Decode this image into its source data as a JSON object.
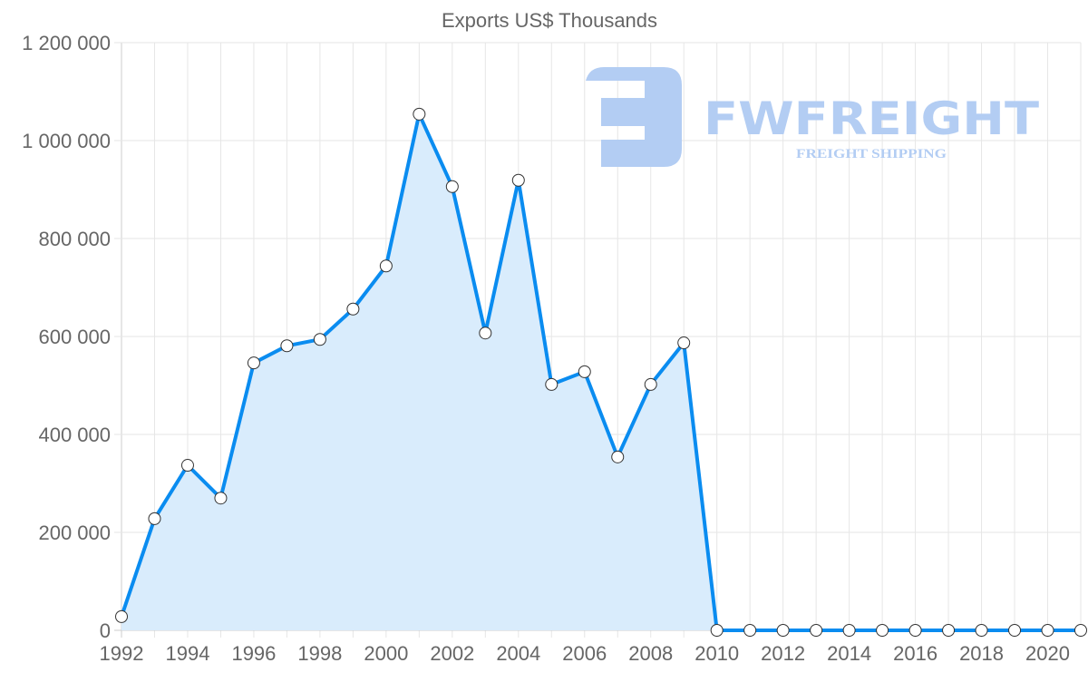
{
  "chart_data": {
    "type": "line",
    "title": "Exports US$ Thousands",
    "xlabel": "",
    "ylabel": "",
    "x": [
      1992,
      1993,
      1994,
      1995,
      1996,
      1997,
      1998,
      1999,
      2000,
      2001,
      2002,
      2003,
      2004,
      2005,
      2006,
      2007,
      2008,
      2009,
      2010,
      2011,
      2012,
      2013,
      2014,
      2015,
      2016,
      2017,
      2018,
      2019,
      2020,
      2021
    ],
    "series": [
      {
        "name": "Exports US$ Thousands",
        "values": [
          28000,
          228000,
          337000,
          270000,
          546000,
          581000,
          594000,
          656000,
          744000,
          1054000,
          906000,
          607000,
          919000,
          502000,
          528000,
          354000,
          502000,
          587000,
          0,
          0,
          0,
          0,
          0,
          0,
          0,
          0,
          0,
          0,
          0,
          0
        ],
        "color": "#0a8cf0",
        "fill": "#d9ecfc"
      }
    ],
    "ylim": [
      0,
      1200000
    ],
    "xlim": [
      1992,
      2021
    ],
    "y_ticks": [
      0,
      200000,
      400000,
      600000,
      800000,
      1000000,
      1200000
    ],
    "y_tick_labels": [
      "0",
      "200 000",
      "400 000",
      "600 000",
      "800 000",
      "1 000 000",
      "1 200 000"
    ],
    "x_tick_labels": [
      "1992",
      "1994",
      "1996",
      "1998",
      "2000",
      "2002",
      "2004",
      "2006",
      "2008",
      "2010",
      "2012",
      "2014",
      "2016",
      "2018",
      "2020"
    ],
    "grid": true,
    "legend": "none"
  },
  "watermark": {
    "brand": "FWFREIGHT",
    "tagline": "FREIGHT SHIPPING",
    "color": "#b3cdf3"
  }
}
